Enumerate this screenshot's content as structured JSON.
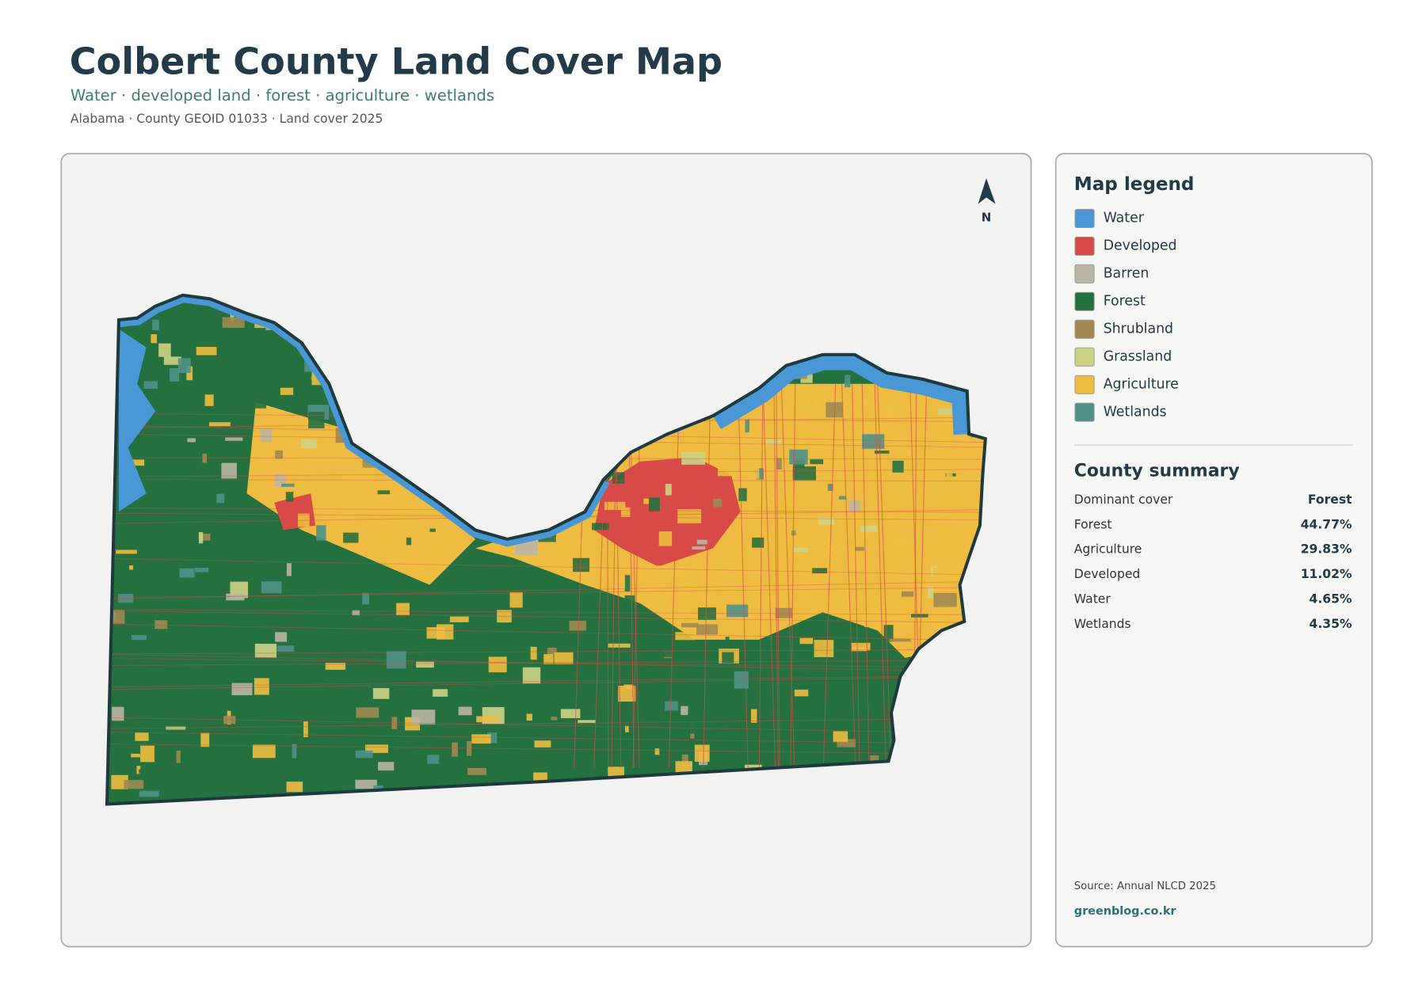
{
  "header": {
    "title": "Colbert County Land Cover Map",
    "subtitle": "Water · developed land · forest · agriculture · wetlands",
    "meta": "Alabama · County GEOID 01033 · Land cover 2025"
  },
  "map": {
    "north_label": "N"
  },
  "legend": {
    "title": "Map legend",
    "items": [
      {
        "label": "Water",
        "color": "#4a97d6"
      },
      {
        "label": "Developed",
        "color": "#d84a48"
      },
      {
        "label": "Barren",
        "color": "#bdb5a3"
      },
      {
        "label": "Forest",
        "color": "#25703f"
      },
      {
        "label": "Shrubland",
        "color": "#a08a52"
      },
      {
        "label": "Grassland",
        "color": "#ccd184"
      },
      {
        "label": "Agriculture",
        "color": "#eebc40"
      },
      {
        "label": "Wetlands",
        "color": "#4f918a"
      }
    ]
  },
  "summary": {
    "title": "County summary",
    "rows": [
      {
        "label": "Dominant cover",
        "value": "Forest"
      },
      {
        "label": "Forest",
        "value": "44.77%"
      },
      {
        "label": "Agriculture",
        "value": "29.83%"
      },
      {
        "label": "Developed",
        "value": "11.02%"
      },
      {
        "label": "Water",
        "value": "4.65%"
      },
      {
        "label": "Wetlands",
        "value": "4.35%"
      }
    ]
  },
  "footer": {
    "source": "Source: Annual NLCD 2025",
    "site": "greenblog.co.kr"
  }
}
